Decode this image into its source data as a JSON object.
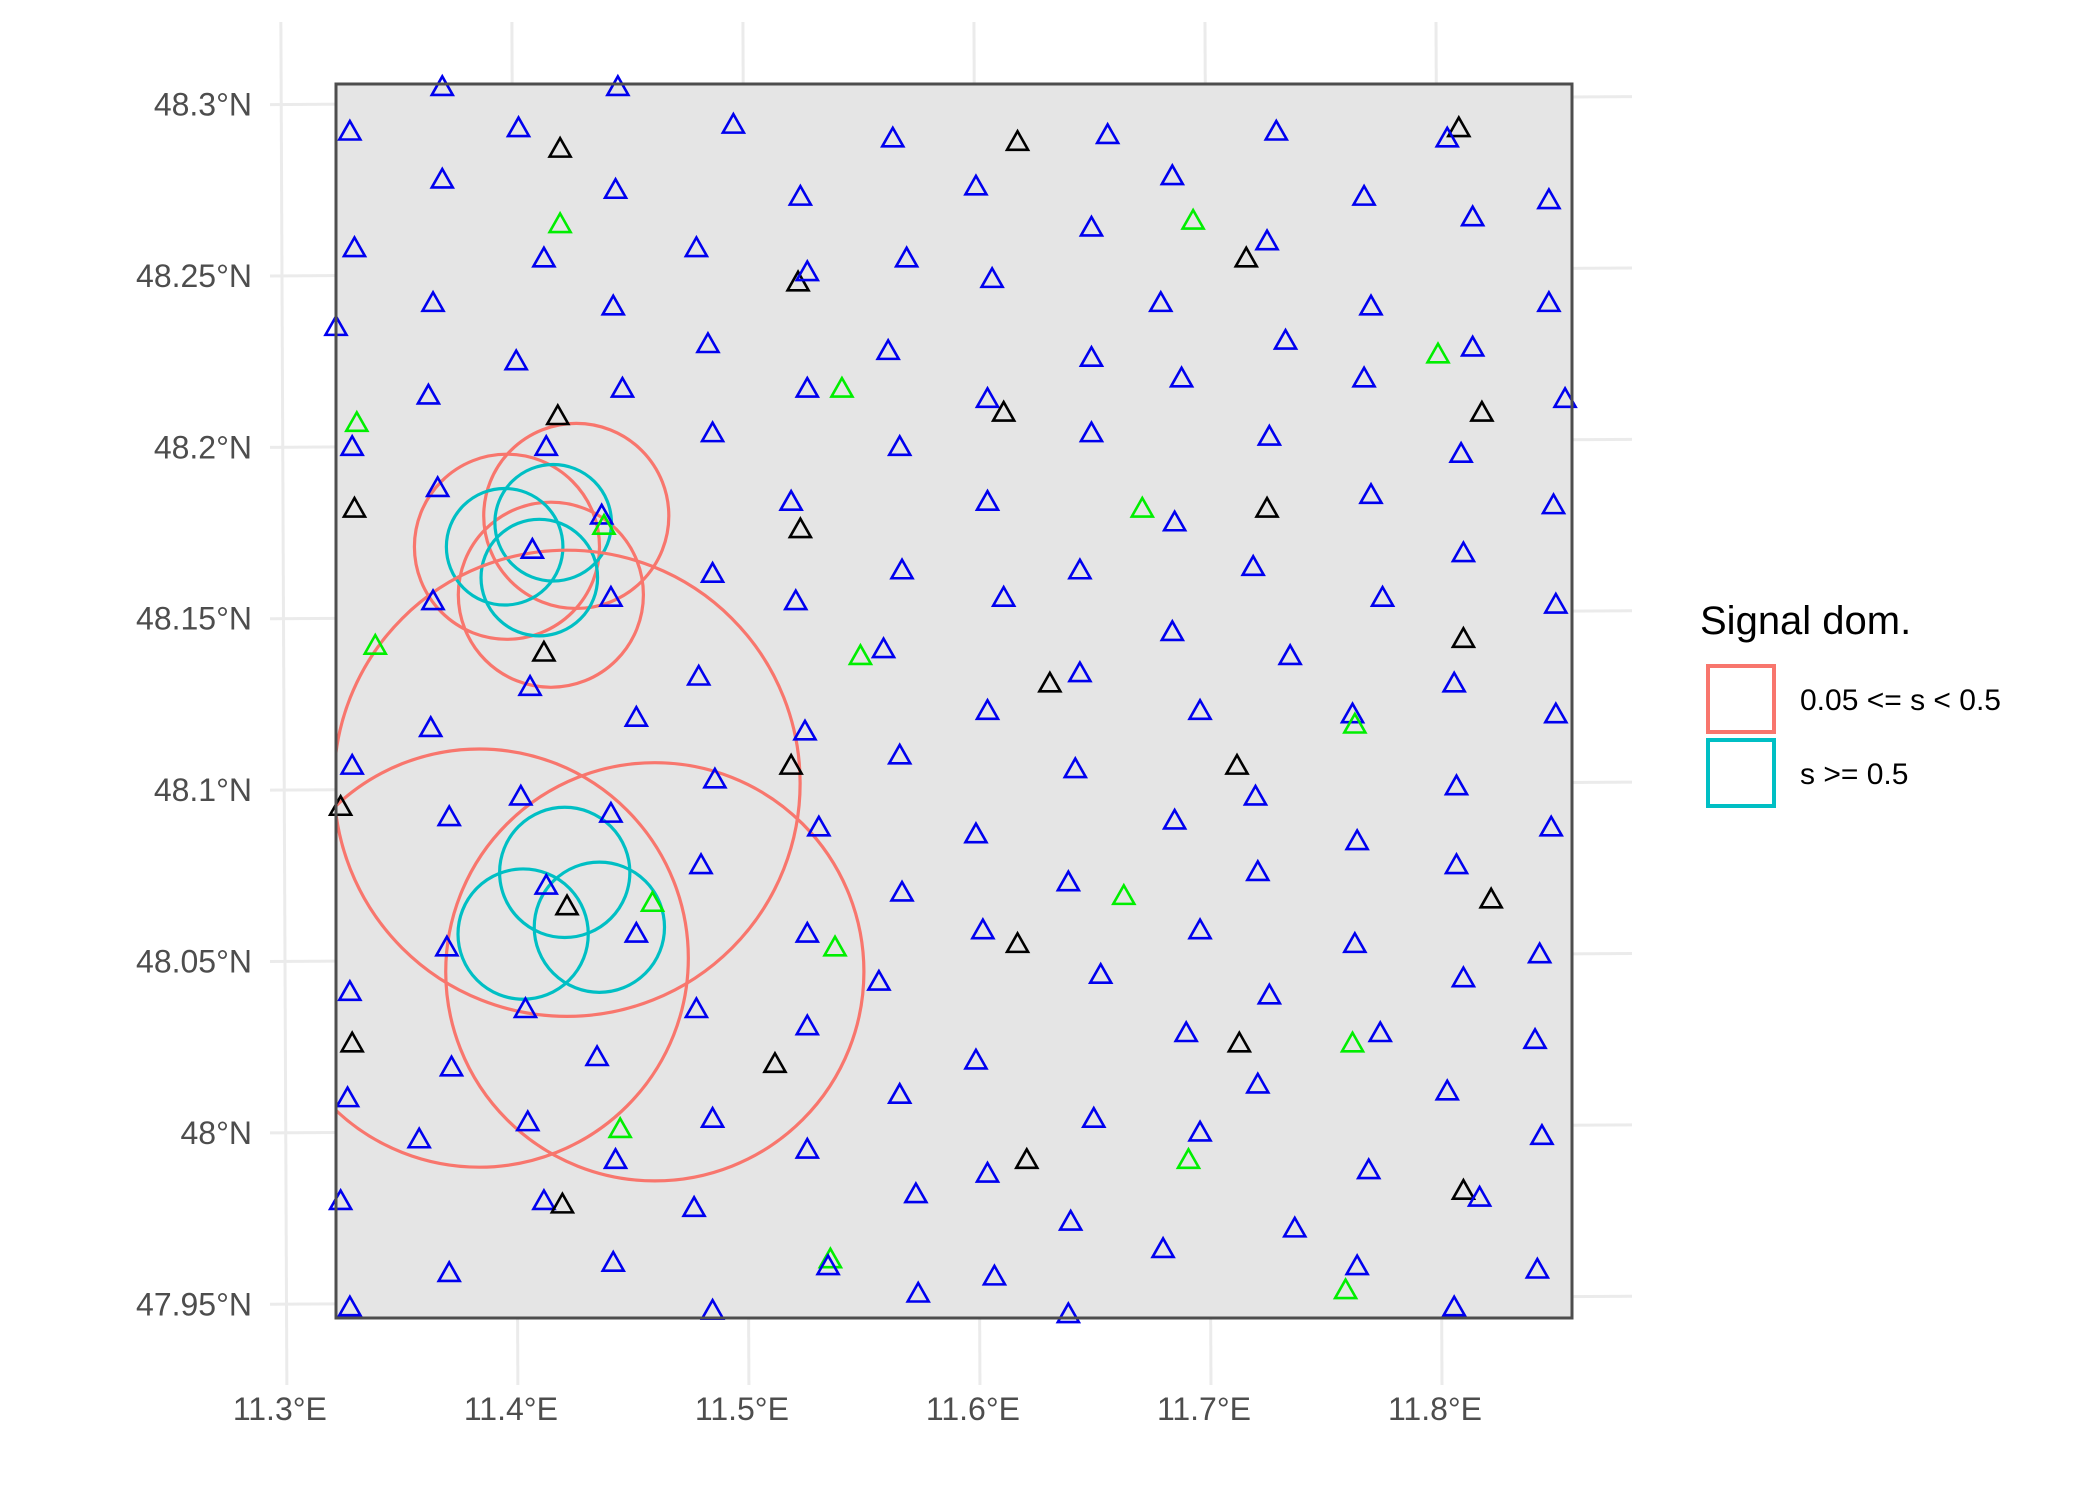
{
  "colors": {
    "background": "#ffffff",
    "panel": "#e5e5e5",
    "panel_border": "#4d4d4d",
    "grid": "#ebebeb",
    "circle_low": "#f8766d",
    "circle_high": "#00bfc4",
    "station_blue": "#0000ee",
    "station_black": "#000000",
    "station_green": "#00ee00"
  },
  "chart_data": {
    "type": "map",
    "xlim": [
      11.323,
      11.858
    ],
    "ylim": [
      47.946,
      48.306
    ],
    "x_ticks": [
      {
        "value": 11.3,
        "label": "11.3°E"
      },
      {
        "value": 11.4,
        "label": "11.4°E"
      },
      {
        "value": 11.5,
        "label": "11.5°E"
      },
      {
        "value": 11.6,
        "label": "11.6°E"
      },
      {
        "value": 11.7,
        "label": "11.7°E"
      },
      {
        "value": 11.8,
        "label": "11.8°E"
      }
    ],
    "y_ticks": [
      {
        "value": 47.95,
        "label": "47.95°N"
      },
      {
        "value": 48.0,
        "label": "48°N"
      },
      {
        "value": 48.05,
        "label": "48.05°N"
      },
      {
        "value": 48.1,
        "label": "48.1°N"
      },
      {
        "value": 48.15,
        "label": "48.15°N"
      },
      {
        "value": 48.2,
        "label": "48.2°N"
      },
      {
        "value": 48.25,
        "label": "48.25°N"
      },
      {
        "value": 48.3,
        "label": "48.3°N"
      }
    ],
    "legend": {
      "title": "Signal dom.",
      "position": "right",
      "entries": [
        {
          "label": "0.05 <= s < 0.5",
          "class": "low"
        },
        {
          "label": "s >= 0.5",
          "class": "high"
        }
      ]
    },
    "circles": [
      {
        "lon": 11.397,
        "lat": 48.171,
        "r": 0.027,
        "class": "low"
      },
      {
        "lon": 11.427,
        "lat": 48.18,
        "r": 0.027,
        "class": "low"
      },
      {
        "lon": 11.416,
        "lat": 48.157,
        "r": 0.027,
        "class": "low"
      },
      {
        "lon": 11.396,
        "lat": 48.171,
        "r": 0.017,
        "class": "high"
      },
      {
        "lon": 11.417,
        "lat": 48.178,
        "r": 0.017,
        "class": "high"
      },
      {
        "lon": 11.411,
        "lat": 48.162,
        "r": 0.017,
        "class": "high"
      },
      {
        "lon": 11.423,
        "lat": 48.102,
        "r": 0.068,
        "class": "low"
      },
      {
        "lon": 11.385,
        "lat": 48.051,
        "r": 0.061,
        "class": "low"
      },
      {
        "lon": 11.461,
        "lat": 48.047,
        "r": 0.061,
        "class": "low"
      },
      {
        "lon": 11.422,
        "lat": 48.076,
        "r": 0.019,
        "class": "high"
      },
      {
        "lon": 11.404,
        "lat": 48.058,
        "r": 0.019,
        "class": "high"
      },
      {
        "lon": 11.437,
        "lat": 48.06,
        "r": 0.019,
        "class": "high"
      }
    ],
    "stations": [
      {
        "lon": 11.369,
        "lat": 48.305,
        "c": "blue"
      },
      {
        "lon": 11.445,
        "lat": 48.305,
        "c": "blue"
      },
      {
        "lon": 11.329,
        "lat": 48.292,
        "c": "blue"
      },
      {
        "lon": 11.402,
        "lat": 48.293,
        "c": "blue"
      },
      {
        "lon": 11.42,
        "lat": 48.287,
        "c": "black"
      },
      {
        "lon": 11.495,
        "lat": 48.294,
        "c": "blue"
      },
      {
        "lon": 11.564,
        "lat": 48.29,
        "c": "blue"
      },
      {
        "lon": 11.618,
        "lat": 48.289,
        "c": "black"
      },
      {
        "lon": 11.657,
        "lat": 48.291,
        "c": "blue"
      },
      {
        "lon": 11.73,
        "lat": 48.292,
        "c": "blue"
      },
      {
        "lon": 11.809,
        "lat": 48.293,
        "c": "black"
      },
      {
        "lon": 11.804,
        "lat": 48.29,
        "c": "blue"
      },
      {
        "lon": 11.369,
        "lat": 48.278,
        "c": "blue"
      },
      {
        "lon": 11.444,
        "lat": 48.275,
        "c": "blue"
      },
      {
        "lon": 11.524,
        "lat": 48.273,
        "c": "blue"
      },
      {
        "lon": 11.6,
        "lat": 48.276,
        "c": "blue"
      },
      {
        "lon": 11.685,
        "lat": 48.279,
        "c": "blue"
      },
      {
        "lon": 11.768,
        "lat": 48.273,
        "c": "blue"
      },
      {
        "lon": 11.848,
        "lat": 48.272,
        "c": "blue"
      },
      {
        "lon": 11.42,
        "lat": 48.265,
        "c": "green"
      },
      {
        "lon": 11.694,
        "lat": 48.266,
        "c": "green"
      },
      {
        "lon": 11.65,
        "lat": 48.264,
        "c": "blue"
      },
      {
        "lon": 11.815,
        "lat": 48.267,
        "c": "blue"
      },
      {
        "lon": 11.331,
        "lat": 48.258,
        "c": "blue"
      },
      {
        "lon": 11.413,
        "lat": 48.255,
        "c": "blue"
      },
      {
        "lon": 11.479,
        "lat": 48.258,
        "c": "blue"
      },
      {
        "lon": 11.57,
        "lat": 48.255,
        "c": "blue"
      },
      {
        "lon": 11.717,
        "lat": 48.255,
        "c": "black"
      },
      {
        "lon": 11.726,
        "lat": 48.26,
        "c": "blue"
      },
      {
        "lon": 11.523,
        "lat": 48.248,
        "c": "black"
      },
      {
        "lon": 11.527,
        "lat": 48.251,
        "c": "blue"
      },
      {
        "lon": 11.607,
        "lat": 48.249,
        "c": "blue"
      },
      {
        "lon": 11.323,
        "lat": 48.235,
        "c": "blue"
      },
      {
        "lon": 11.365,
        "lat": 48.242,
        "c": "blue"
      },
      {
        "lon": 11.443,
        "lat": 48.241,
        "c": "blue"
      },
      {
        "lon": 11.68,
        "lat": 48.242,
        "c": "blue"
      },
      {
        "lon": 11.771,
        "lat": 48.241,
        "c": "blue"
      },
      {
        "lon": 11.848,
        "lat": 48.242,
        "c": "blue"
      },
      {
        "lon": 11.484,
        "lat": 48.23,
        "c": "blue"
      },
      {
        "lon": 11.562,
        "lat": 48.228,
        "c": "blue"
      },
      {
        "lon": 11.65,
        "lat": 48.226,
        "c": "blue"
      },
      {
        "lon": 11.734,
        "lat": 48.231,
        "c": "blue"
      },
      {
        "lon": 11.8,
        "lat": 48.227,
        "c": "green"
      },
      {
        "lon": 11.815,
        "lat": 48.229,
        "c": "blue"
      },
      {
        "lon": 11.401,
        "lat": 48.225,
        "c": "blue"
      },
      {
        "lon": 11.363,
        "lat": 48.215,
        "c": "blue"
      },
      {
        "lon": 11.447,
        "lat": 48.217,
        "c": "blue"
      },
      {
        "lon": 11.527,
        "lat": 48.217,
        "c": "blue"
      },
      {
        "lon": 11.542,
        "lat": 48.217,
        "c": "green"
      },
      {
        "lon": 11.605,
        "lat": 48.214,
        "c": "blue"
      },
      {
        "lon": 11.612,
        "lat": 48.21,
        "c": "black"
      },
      {
        "lon": 11.689,
        "lat": 48.22,
        "c": "blue"
      },
      {
        "lon": 11.768,
        "lat": 48.22,
        "c": "blue"
      },
      {
        "lon": 11.855,
        "lat": 48.214,
        "c": "blue"
      },
      {
        "lon": 11.332,
        "lat": 48.207,
        "c": "green"
      },
      {
        "lon": 11.419,
        "lat": 48.209,
        "c": "black"
      },
      {
        "lon": 11.486,
        "lat": 48.204,
        "c": "blue"
      },
      {
        "lon": 11.65,
        "lat": 48.204,
        "c": "blue"
      },
      {
        "lon": 11.727,
        "lat": 48.203,
        "c": "blue"
      },
      {
        "lon": 11.819,
        "lat": 48.21,
        "c": "black"
      },
      {
        "lon": 11.33,
        "lat": 48.2,
        "c": "blue"
      },
      {
        "lon": 11.414,
        "lat": 48.2,
        "c": "blue"
      },
      {
        "lon": 11.567,
        "lat": 48.2,
        "c": "blue"
      },
      {
        "lon": 11.81,
        "lat": 48.198,
        "c": "blue"
      },
      {
        "lon": 11.367,
        "lat": 48.188,
        "c": "blue"
      },
      {
        "lon": 11.52,
        "lat": 48.184,
        "c": "blue"
      },
      {
        "lon": 11.605,
        "lat": 48.184,
        "c": "blue"
      },
      {
        "lon": 11.771,
        "lat": 48.186,
        "c": "blue"
      },
      {
        "lon": 11.85,
        "lat": 48.183,
        "c": "blue"
      },
      {
        "lon": 11.331,
        "lat": 48.182,
        "c": "black"
      },
      {
        "lon": 11.438,
        "lat": 48.18,
        "c": "blue"
      },
      {
        "lon": 11.672,
        "lat": 48.182,
        "c": "green"
      },
      {
        "lon": 11.726,
        "lat": 48.182,
        "c": "black"
      },
      {
        "lon": 11.439,
        "lat": 48.177,
        "c": "green"
      },
      {
        "lon": 11.524,
        "lat": 48.176,
        "c": "black"
      },
      {
        "lon": 11.686,
        "lat": 48.178,
        "c": "blue"
      },
      {
        "lon": 11.408,
        "lat": 48.17,
        "c": "blue"
      },
      {
        "lon": 11.811,
        "lat": 48.169,
        "c": "blue"
      },
      {
        "lon": 11.486,
        "lat": 48.163,
        "c": "blue"
      },
      {
        "lon": 11.568,
        "lat": 48.164,
        "c": "blue"
      },
      {
        "lon": 11.645,
        "lat": 48.164,
        "c": "blue"
      },
      {
        "lon": 11.72,
        "lat": 48.165,
        "c": "blue"
      },
      {
        "lon": 11.365,
        "lat": 48.155,
        "c": "blue"
      },
      {
        "lon": 11.442,
        "lat": 48.156,
        "c": "blue"
      },
      {
        "lon": 11.522,
        "lat": 48.155,
        "c": "blue"
      },
      {
        "lon": 11.612,
        "lat": 48.156,
        "c": "blue"
      },
      {
        "lon": 11.776,
        "lat": 48.156,
        "c": "blue"
      },
      {
        "lon": 11.851,
        "lat": 48.154,
        "c": "blue"
      },
      {
        "lon": 11.34,
        "lat": 48.142,
        "c": "green"
      },
      {
        "lon": 11.413,
        "lat": 48.14,
        "c": "black"
      },
      {
        "lon": 11.56,
        "lat": 48.141,
        "c": "blue"
      },
      {
        "lon": 11.55,
        "lat": 48.139,
        "c": "green"
      },
      {
        "lon": 11.685,
        "lat": 48.146,
        "c": "blue"
      },
      {
        "lon": 11.736,
        "lat": 48.139,
        "c": "blue"
      },
      {
        "lon": 11.811,
        "lat": 48.144,
        "c": "black"
      },
      {
        "lon": 11.407,
        "lat": 48.13,
        "c": "blue"
      },
      {
        "lon": 11.48,
        "lat": 48.133,
        "c": "blue"
      },
      {
        "lon": 11.632,
        "lat": 48.131,
        "c": "black"
      },
      {
        "lon": 11.645,
        "lat": 48.134,
        "c": "blue"
      },
      {
        "lon": 11.807,
        "lat": 48.131,
        "c": "blue"
      },
      {
        "lon": 11.453,
        "lat": 48.121,
        "c": "blue"
      },
      {
        "lon": 11.605,
        "lat": 48.123,
        "c": "blue"
      },
      {
        "lon": 11.697,
        "lat": 48.123,
        "c": "blue"
      },
      {
        "lon": 11.763,
        "lat": 48.122,
        "c": "blue"
      },
      {
        "lon": 11.764,
        "lat": 48.119,
        "c": "green"
      },
      {
        "lon": 11.851,
        "lat": 48.122,
        "c": "blue"
      },
      {
        "lon": 11.364,
        "lat": 48.118,
        "c": "blue"
      },
      {
        "lon": 11.526,
        "lat": 48.117,
        "c": "blue"
      },
      {
        "lon": 11.33,
        "lat": 48.107,
        "c": "blue"
      },
      {
        "lon": 11.52,
        "lat": 48.107,
        "c": "black"
      },
      {
        "lon": 11.567,
        "lat": 48.11,
        "c": "blue"
      },
      {
        "lon": 11.643,
        "lat": 48.106,
        "c": "blue"
      },
      {
        "lon": 11.713,
        "lat": 48.107,
        "c": "black"
      },
      {
        "lon": 11.487,
        "lat": 48.103,
        "c": "blue"
      },
      {
        "lon": 11.808,
        "lat": 48.101,
        "c": "blue"
      },
      {
        "lon": 11.325,
        "lat": 48.095,
        "c": "black"
      },
      {
        "lon": 11.403,
        "lat": 48.098,
        "c": "blue"
      },
      {
        "lon": 11.721,
        "lat": 48.098,
        "c": "blue"
      },
      {
        "lon": 11.372,
        "lat": 48.092,
        "c": "blue"
      },
      {
        "lon": 11.442,
        "lat": 48.093,
        "c": "blue"
      },
      {
        "lon": 11.686,
        "lat": 48.091,
        "c": "blue"
      },
      {
        "lon": 11.532,
        "lat": 48.089,
        "c": "blue"
      },
      {
        "lon": 11.849,
        "lat": 48.089,
        "c": "blue"
      },
      {
        "lon": 11.6,
        "lat": 48.087,
        "c": "blue"
      },
      {
        "lon": 11.765,
        "lat": 48.085,
        "c": "blue"
      },
      {
        "lon": 11.481,
        "lat": 48.078,
        "c": "blue"
      },
      {
        "lon": 11.722,
        "lat": 48.076,
        "c": "blue"
      },
      {
        "lon": 11.808,
        "lat": 48.078,
        "c": "blue"
      },
      {
        "lon": 11.64,
        "lat": 48.073,
        "c": "blue"
      },
      {
        "lon": 11.414,
        "lat": 48.072,
        "c": "blue"
      },
      {
        "lon": 11.568,
        "lat": 48.07,
        "c": "blue"
      },
      {
        "lon": 11.664,
        "lat": 48.069,
        "c": "green"
      },
      {
        "lon": 11.46,
        "lat": 48.067,
        "c": "green"
      },
      {
        "lon": 11.823,
        "lat": 48.068,
        "c": "black"
      },
      {
        "lon": 11.423,
        "lat": 48.066,
        "c": "black"
      },
      {
        "lon": 11.603,
        "lat": 48.059,
        "c": "blue"
      },
      {
        "lon": 11.697,
        "lat": 48.059,
        "c": "blue"
      },
      {
        "lon": 11.453,
        "lat": 48.058,
        "c": "blue"
      },
      {
        "lon": 11.527,
        "lat": 48.058,
        "c": "blue"
      },
      {
        "lon": 11.618,
        "lat": 48.055,
        "c": "black"
      },
      {
        "lon": 11.371,
        "lat": 48.054,
        "c": "blue"
      },
      {
        "lon": 11.539,
        "lat": 48.054,
        "c": "green"
      },
      {
        "lon": 11.764,
        "lat": 48.055,
        "c": "blue"
      },
      {
        "lon": 11.844,
        "lat": 48.052,
        "c": "blue"
      },
      {
        "lon": 11.654,
        "lat": 48.046,
        "c": "blue"
      },
      {
        "lon": 11.811,
        "lat": 48.045,
        "c": "blue"
      },
      {
        "lon": 11.558,
        "lat": 48.044,
        "c": "blue"
      },
      {
        "lon": 11.329,
        "lat": 48.041,
        "c": "blue"
      },
      {
        "lon": 11.727,
        "lat": 48.04,
        "c": "blue"
      },
      {
        "lon": 11.405,
        "lat": 48.036,
        "c": "blue"
      },
      {
        "lon": 11.479,
        "lat": 48.036,
        "c": "blue"
      },
      {
        "lon": 11.527,
        "lat": 48.031,
        "c": "blue"
      },
      {
        "lon": 11.691,
        "lat": 48.029,
        "c": "blue"
      },
      {
        "lon": 11.775,
        "lat": 48.029,
        "c": "blue"
      },
      {
        "lon": 11.842,
        "lat": 48.027,
        "c": "blue"
      },
      {
        "lon": 11.33,
        "lat": 48.026,
        "c": "black"
      },
      {
        "lon": 11.714,
        "lat": 48.026,
        "c": "black"
      },
      {
        "lon": 11.763,
        "lat": 48.026,
        "c": "green"
      },
      {
        "lon": 11.436,
        "lat": 48.022,
        "c": "blue"
      },
      {
        "lon": 11.6,
        "lat": 48.021,
        "c": "blue"
      },
      {
        "lon": 11.513,
        "lat": 48.02,
        "c": "black"
      },
      {
        "lon": 11.373,
        "lat": 48.019,
        "c": "blue"
      },
      {
        "lon": 11.722,
        "lat": 48.014,
        "c": "blue"
      },
      {
        "lon": 11.804,
        "lat": 48.012,
        "c": "blue"
      },
      {
        "lon": 11.567,
        "lat": 48.011,
        "c": "blue"
      },
      {
        "lon": 11.328,
        "lat": 48.01,
        "c": "blue"
      },
      {
        "lon": 11.486,
        "lat": 48.004,
        "c": "blue"
      },
      {
        "lon": 11.406,
        "lat": 48.003,
        "c": "blue"
      },
      {
        "lon": 11.651,
        "lat": 48.004,
        "c": "blue"
      },
      {
        "lon": 11.446,
        "lat": 48.001,
        "c": "green"
      },
      {
        "lon": 11.697,
        "lat": 48.0,
        "c": "blue"
      },
      {
        "lon": 11.845,
        "lat": 47.999,
        "c": "blue"
      },
      {
        "lon": 11.359,
        "lat": 47.998,
        "c": "blue"
      },
      {
        "lon": 11.527,
        "lat": 47.995,
        "c": "blue"
      },
      {
        "lon": 11.444,
        "lat": 47.992,
        "c": "blue"
      },
      {
        "lon": 11.622,
        "lat": 47.992,
        "c": "black"
      },
      {
        "lon": 11.692,
        "lat": 47.992,
        "c": "green"
      },
      {
        "lon": 11.605,
        "lat": 47.988,
        "c": "blue"
      },
      {
        "lon": 11.77,
        "lat": 47.989,
        "c": "blue"
      },
      {
        "lon": 11.574,
        "lat": 47.982,
        "c": "blue"
      },
      {
        "lon": 11.811,
        "lat": 47.983,
        "c": "black"
      },
      {
        "lon": 11.818,
        "lat": 47.981,
        "c": "blue"
      },
      {
        "lon": 11.325,
        "lat": 47.98,
        "c": "blue"
      },
      {
        "lon": 11.413,
        "lat": 47.98,
        "c": "blue"
      },
      {
        "lon": 11.421,
        "lat": 47.979,
        "c": "black"
      },
      {
        "lon": 11.478,
        "lat": 47.978,
        "c": "blue"
      },
      {
        "lon": 11.641,
        "lat": 47.974,
        "c": "blue"
      },
      {
        "lon": 11.738,
        "lat": 47.972,
        "c": "blue"
      },
      {
        "lon": 11.681,
        "lat": 47.966,
        "c": "blue"
      },
      {
        "lon": 11.537,
        "lat": 47.963,
        "c": "green"
      },
      {
        "lon": 11.536,
        "lat": 47.961,
        "c": "blue"
      },
      {
        "lon": 11.443,
        "lat": 47.962,
        "c": "blue"
      },
      {
        "lon": 11.765,
        "lat": 47.961,
        "c": "blue"
      },
      {
        "lon": 11.843,
        "lat": 47.96,
        "c": "blue"
      },
      {
        "lon": 11.372,
        "lat": 47.959,
        "c": "blue"
      },
      {
        "lon": 11.608,
        "lat": 47.958,
        "c": "blue"
      },
      {
        "lon": 11.575,
        "lat": 47.953,
        "c": "blue"
      },
      {
        "lon": 11.76,
        "lat": 47.954,
        "c": "green"
      },
      {
        "lon": 11.329,
        "lat": 47.949,
        "c": "blue"
      },
      {
        "lon": 11.807,
        "lat": 47.949,
        "c": "blue"
      },
      {
        "lon": 11.486,
        "lat": 47.948,
        "c": "blue"
      },
      {
        "lon": 11.64,
        "lat": 47.947,
        "c": "blue"
      }
    ]
  }
}
